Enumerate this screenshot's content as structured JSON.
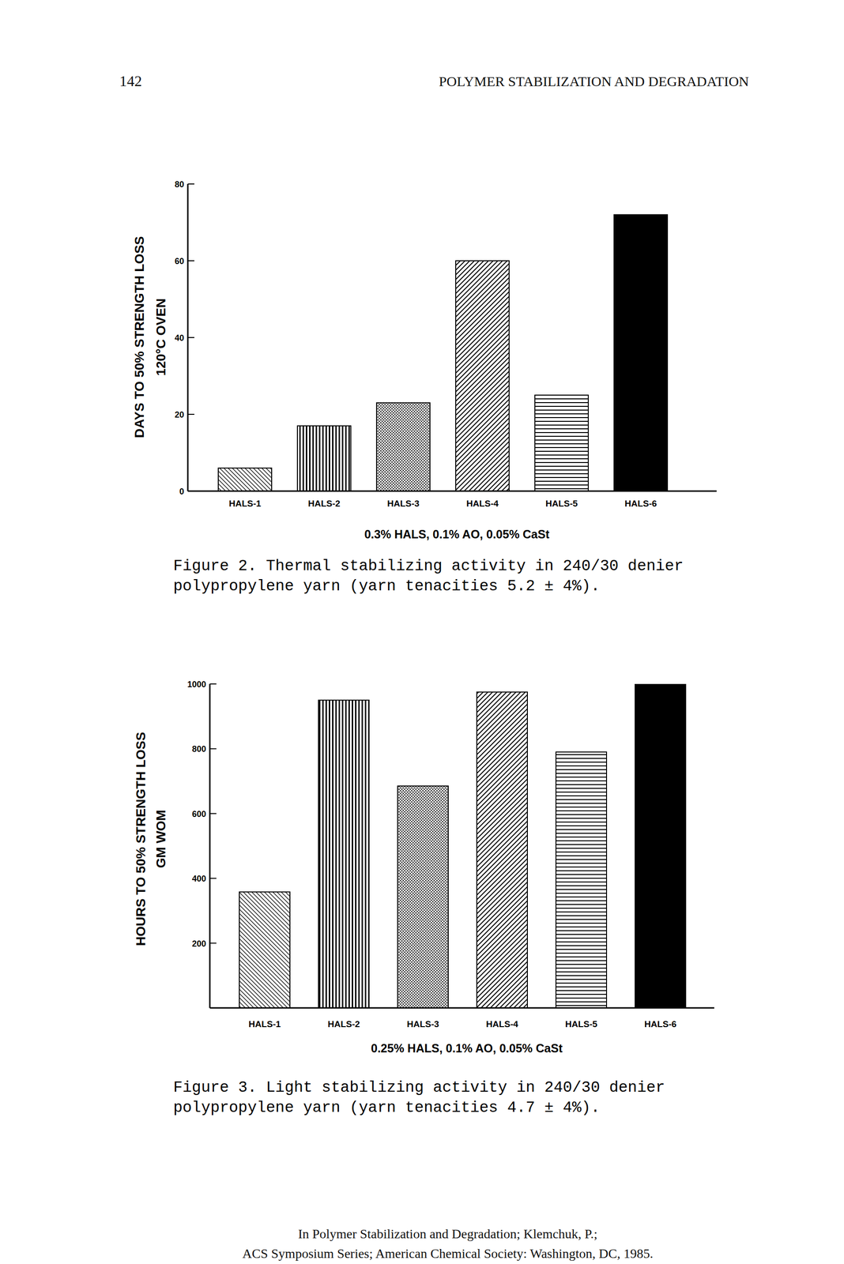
{
  "page_header": {
    "number": "142",
    "title": "POLYMER STABILIZATION AND DEGRADATION"
  },
  "chart_data": [
    {
      "type": "bar",
      "title": [
        "Figure 2. Thermal stabilizing activity in 240/30 denier",
        "polypropylene yarn (yarn tenacities 5.2 ± 4%)."
      ],
      "x_label": "0.3% HALS, 0.1% AO, 0.05% CaSt",
      "y_label": [
        "DAYS TO 50% STRENGTH LOSS",
        "120°C OVEN"
      ],
      "categories": [
        "HALS-1",
        "HALS-2",
        "HALS-3",
        "HALS-4",
        "HALS-5",
        "HALS-6"
      ],
      "values": [
        6,
        17,
        23,
        60,
        25,
        72
      ],
      "color": "#000000",
      "ylim": [
        0,
        80
      ],
      "yticks": [
        0,
        20,
        40,
        60,
        80
      ],
      "grid": false
    },
    {
      "type": "bar",
      "title": [
        "Figure 3. Light stabilizing activity in 240/30 denier",
        "polypropylene yarn (yarn tenacities 4.7 ± 4%)."
      ],
      "x_label": "0.25% HALS, 0.1% AO, 0.05% CaSt",
      "y_label": [
        "HOURS TO 50% STRENGTH LOSS",
        "GM WOM"
      ],
      "categories": [
        "HALS-1",
        "HALS-2",
        "HALS-3",
        "HALS-4",
        "HALS-5",
        "HALS-6"
      ],
      "values": [
        358,
        950,
        685,
        975,
        790,
        1000
      ],
      "color": "#000000",
      "ylim": [
        0,
        1000
      ],
      "yticks": [
        200,
        400,
        600,
        800,
        1000
      ],
      "grid": false
    }
  ],
  "footer": [
    "In Polymer Stabilization and Degradation; Klemchuk, P.;",
    "ACS Symposium Series; American Chemical Society: Washington, DC, 1985."
  ]
}
